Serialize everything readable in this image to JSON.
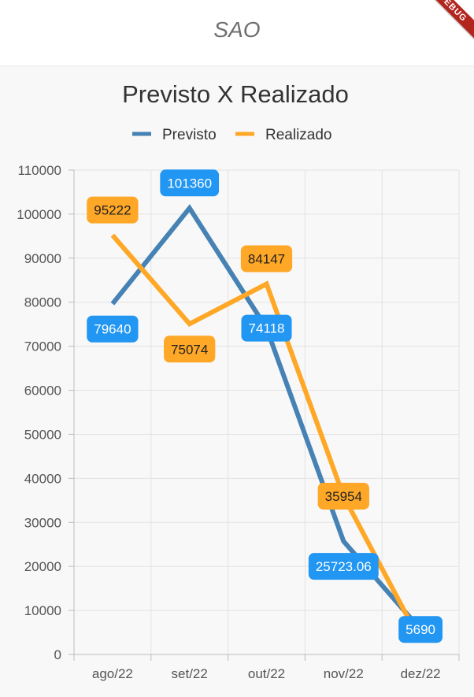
{
  "appbar": {
    "title": "SAO",
    "debug_label": "DEBUG"
  },
  "chart_data": {
    "type": "line",
    "title": "Previsto X Realizado",
    "categories": [
      "ago/22",
      "set/22",
      "out/22",
      "nov/22",
      "dez/22"
    ],
    "series": [
      {
        "name": "Previsto",
        "color": "#4682b4",
        "label_color": "#2196f3",
        "label_text_color": "#ffffff",
        "values": [
          79640,
          101360,
          74118,
          25723.06,
          5690
        ]
      },
      {
        "name": "Realizado",
        "color": "#ffa726",
        "label_color": "#ffa726",
        "label_text_color": "#222222",
        "values": [
          95222,
          75074,
          84147,
          35954,
          3000
        ]
      }
    ],
    "data_labels": {
      "Previsto": [
        "79640",
        "101360",
        "74118",
        "25723.06",
        "5690"
      ],
      "Realizado": [
        "95222",
        "75074",
        "84147",
        "35954",
        ""
      ]
    },
    "ylim": [
      0,
      110000
    ],
    "yticks": [
      "0",
      "10000",
      "20000",
      "30000",
      "40000",
      "50000",
      "60000",
      "70000",
      "80000",
      "90000",
      "100000",
      "110000"
    ],
    "grid": true,
    "legend_position": "top"
  }
}
